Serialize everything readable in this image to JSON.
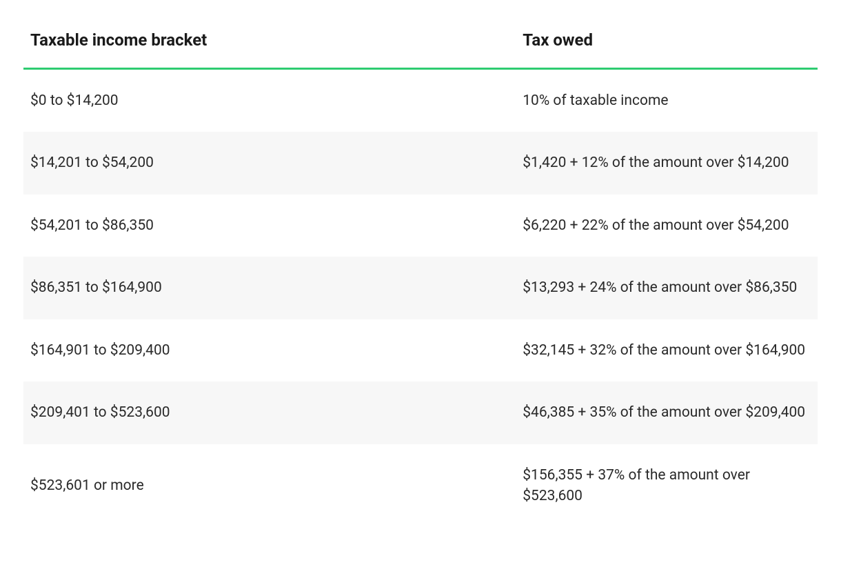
{
  "table": {
    "type": "table",
    "accent_color": "#2ecc71",
    "row_alt_bg": "#f7f7f7",
    "row_bg": "#ffffff",
    "text_color": "#1a1a1a",
    "body_text_color": "#2a2a2a",
    "header_fontsize_pt": 18,
    "body_fontsize_pt": 16,
    "columns": [
      {
        "label": "Taxable income bracket",
        "width_pct": 62
      },
      {
        "label": "Tax owed",
        "width_pct": 38
      }
    ],
    "rows": [
      {
        "bracket": "$0 to $14,200",
        "owed": "10% of taxable income"
      },
      {
        "bracket": "$14,201 to $54,200",
        "owed": "$1,420 + 12% of the amount over $14,200"
      },
      {
        "bracket": "$54,201 to $86,350",
        "owed": "$6,220 + 22% of the amount over $54,200"
      },
      {
        "bracket": "$86,351 to $164,900",
        "owed": "$13,293 + 24% of the amount over $86,350"
      },
      {
        "bracket": "$164,901 to $209,400",
        "owed": "$32,145 + 32% of the amount over $164,900"
      },
      {
        "bracket": "$209,401 to $523,600",
        "owed": "$46,385 + 35% of the amount over $209,400"
      },
      {
        "bracket": "$523,601 or more",
        "owed": "$156,355 + 37% of the amount over $523,600"
      }
    ]
  }
}
